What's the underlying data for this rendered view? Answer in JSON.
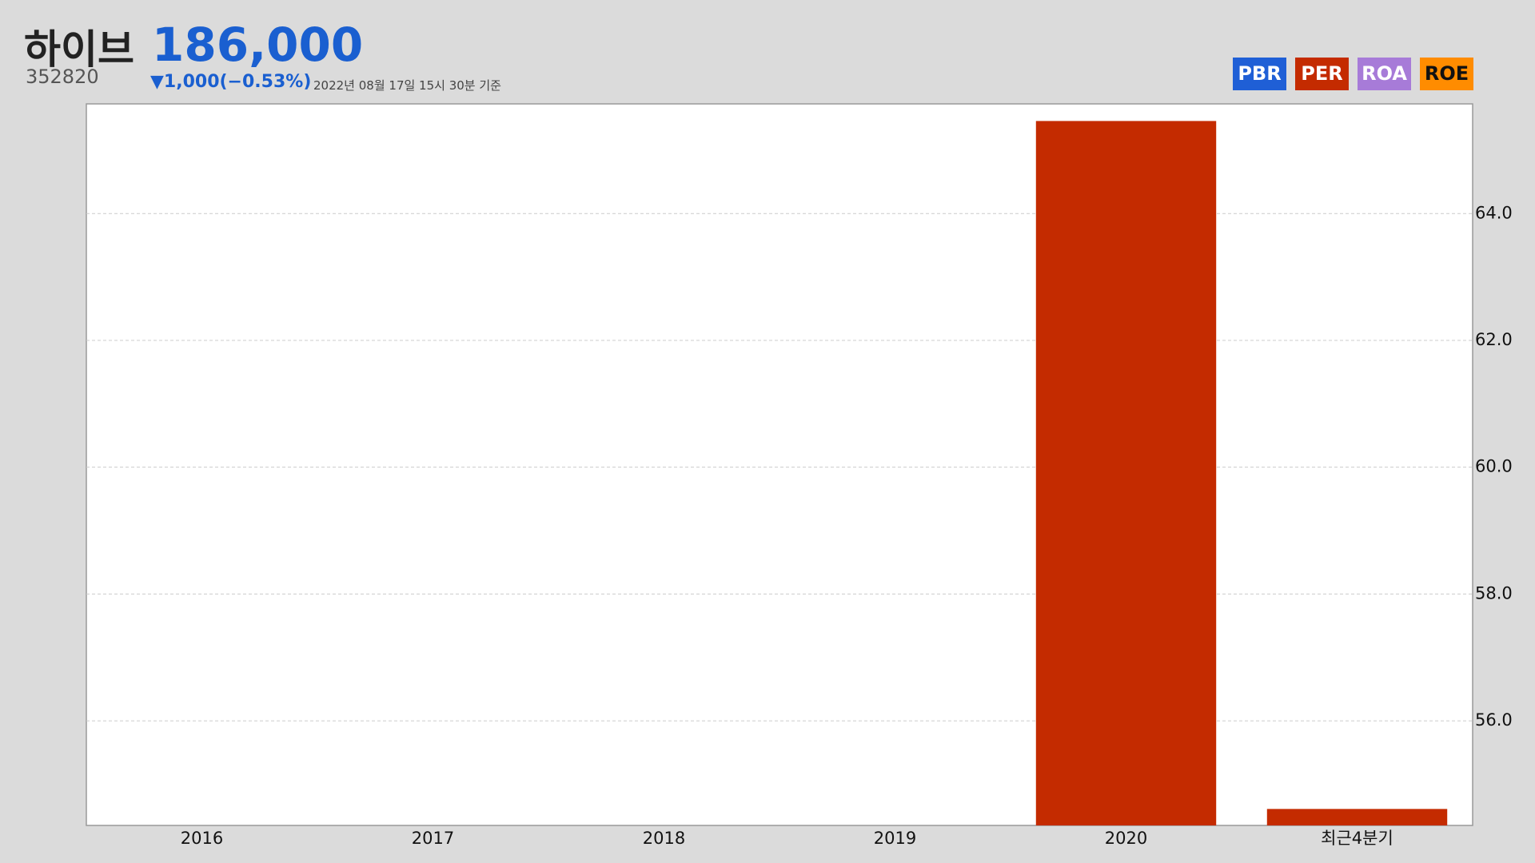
{
  "header": {
    "name": "하이브",
    "price": "186,000",
    "code": "352820",
    "change": "▼1,000(−0.53%)",
    "timestamp": "2022년 08월 17일 15시 30분 기준"
  },
  "tabs": [
    {
      "label": "PBR",
      "color": "#1f5fd6"
    },
    {
      "label": "PER",
      "color": "#c42b00"
    },
    {
      "label": "ROA",
      "color": "#a77bd8"
    },
    {
      "label": "ROE",
      "color": "#ff8c00"
    }
  ],
  "chart_data": {
    "type": "bar",
    "categories": [
      "2016",
      "2017",
      "2018",
      "2019",
      "2020",
      "최근4분기"
    ],
    "values": [
      null,
      null,
      null,
      null,
      65.46,
      54.61
    ],
    "color": "#c42b00",
    "ylim": [
      54.35,
      65.73
    ],
    "yticks": [
      {
        "value": 56,
        "label": "56.0"
      },
      {
        "value": 58,
        "label": "58.0"
      },
      {
        "value": 60,
        "label": "60.0"
      },
      {
        "value": 62,
        "label": "62.0"
      },
      {
        "value": 64,
        "label": "64.0"
      }
    ],
    "grid": true
  }
}
